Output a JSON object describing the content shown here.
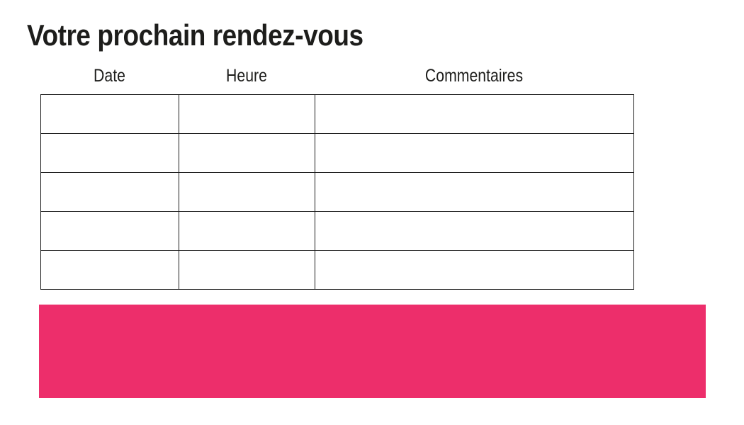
{
  "page": {
    "title": "Votre prochain rendez-vous"
  },
  "table": {
    "columns": [
      {
        "label": "Date"
      },
      {
        "label": "Heure"
      },
      {
        "label": "Commentaires"
      }
    ],
    "rows": [
      [
        "",
        "",
        ""
      ],
      [
        "",
        "",
        ""
      ],
      [
        "",
        "",
        ""
      ],
      [
        "",
        "",
        ""
      ],
      [
        "",
        "",
        ""
      ]
    ]
  },
  "banner": {
    "color": "#ED2E6B"
  },
  "colors": {
    "text": "#1d1d1b",
    "table_border": "#1c1c1c",
    "accent": "#ED2E6B",
    "background": "#ffffff"
  }
}
